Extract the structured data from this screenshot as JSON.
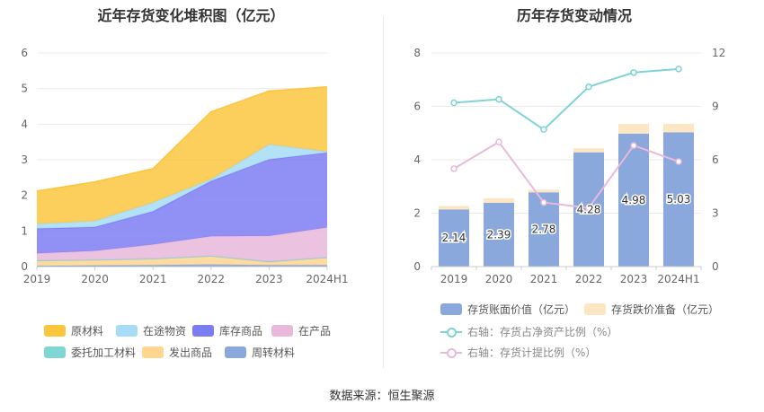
{
  "left": {
    "title": "近年存货变化堆积图（亿元）",
    "legend": [
      {
        "name": "原材料",
        "color": "#fbc53e"
      },
      {
        "name": "在途物资",
        "color": "#a6dcf5"
      },
      {
        "name": "库存商品",
        "color": "#7c7cf3"
      },
      {
        "name": "在产品",
        "color": "#e8b9da"
      },
      {
        "name": "委托加工材料",
        "color": "#7fd6d2"
      },
      {
        "name": "发出商品",
        "color": "#ffd58f"
      },
      {
        "name": "周转材料",
        "color": "#8aa8db"
      }
    ]
  },
  "right": {
    "title": "历年存货变动情况",
    "legend": [
      {
        "name": "存货账面价值（亿元）",
        "color": "#8aa8db",
        "kind": "bar"
      },
      {
        "name": "存货跌价准备（亿元）",
        "color": "#fde6c4",
        "kind": "bar"
      },
      {
        "name": "右轴：存货占净资产比例（%）",
        "color": "#7fd3d6",
        "kind": "line"
      },
      {
        "name": "右轴：存货计提比例（%）",
        "color": "#e8b9da",
        "kind": "line"
      }
    ]
  },
  "source": "数据来源：恒生聚源",
  "chart_data": [
    {
      "type": "area",
      "title": "近年存货变化堆积图（亿元）",
      "stacked": true,
      "categories": [
        "2019",
        "2020",
        "2021",
        "2022",
        "2023",
        "2024H1"
      ],
      "ylim": [
        0,
        6
      ],
      "yticks": [
        0,
        1,
        2,
        3,
        4,
        5,
        6
      ],
      "grid": true,
      "legend_position": "bottom",
      "series": [
        {
          "name": "周转材料",
          "color": "#8aa8db",
          "values": [
            0.02,
            0.03,
            0.04,
            0.06,
            0.04,
            0.04
          ]
        },
        {
          "name": "发出商品",
          "color": "#ffd58f",
          "values": [
            0.15,
            0.16,
            0.18,
            0.24,
            0.08,
            0.22
          ]
        },
        {
          "name": "委托加工材料",
          "color": "#7fd6d2",
          "values": [
            0.0,
            0.0,
            0.0,
            0.0,
            0.02,
            0.0
          ]
        },
        {
          "name": "在产品",
          "color": "#e8b9da",
          "values": [
            0.2,
            0.25,
            0.4,
            0.55,
            0.72,
            0.84
          ]
        },
        {
          "name": "库存商品",
          "color": "#7c7cf3",
          "values": [
            0.7,
            0.67,
            0.93,
            1.55,
            2.15,
            2.1
          ]
        },
        {
          "name": "在途物资",
          "color": "#a6dcf5",
          "values": [
            0.13,
            0.17,
            0.25,
            0.05,
            0.42,
            0.03
          ]
        },
        {
          "name": "原材料",
          "color": "#fbc53e",
          "values": [
            0.92,
            1.1,
            0.95,
            1.9,
            1.5,
            1.82
          ]
        }
      ]
    },
    {
      "type": "bar",
      "title": "历年存货变动情况",
      "categories": [
        "2019",
        "2020",
        "2021",
        "2022",
        "2023",
        "2024H1"
      ],
      "ylim": [
        0,
        8
      ],
      "yticks": [
        0,
        2,
        4,
        6,
        8
      ],
      "y2lim": [
        0,
        12
      ],
      "y2ticks": [
        0,
        3,
        6,
        9,
        12
      ],
      "grid": true,
      "legend_position": "bottom",
      "series": [
        {
          "name": "存货账面价值（亿元）",
          "kind": "bar",
          "axis": "left",
          "color": "#8aa8db",
          "values": [
            2.14,
            2.39,
            2.78,
            4.28,
            4.98,
            5.03
          ],
          "labels": [
            "2.14",
            "2.39",
            "2.78",
            "4.28",
            "4.98",
            "5.03"
          ]
        },
        {
          "name": "存货跌价准备（亿元）",
          "kind": "bar",
          "axis": "left",
          "stacked": true,
          "color": "#fde6c4",
          "values": [
            0.13,
            0.17,
            0.1,
            0.15,
            0.36,
            0.32
          ]
        },
        {
          "name": "右轴：存货占净资产比例（%）",
          "kind": "line",
          "axis": "right",
          "color": "#7fd3d6",
          "values": [
            9.2,
            9.4,
            7.7,
            10.1,
            10.9,
            11.1
          ]
        },
        {
          "name": "右轴：存货计提比例（%）",
          "kind": "line",
          "axis": "right",
          "color": "#e8b9da",
          "values": [
            5.5,
            7.0,
            3.6,
            3.3,
            6.8,
            5.9
          ]
        }
      ]
    }
  ]
}
